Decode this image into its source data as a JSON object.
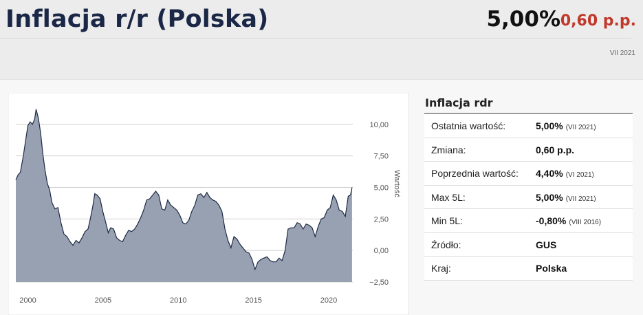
{
  "header": {
    "title": "Inflacja r/r (Polska)",
    "value": "5,00%",
    "change": "0,60 p.p.",
    "date": "VII 2021"
  },
  "table": {
    "title": "Inflacja rdr",
    "rows": [
      {
        "label": "Ostatnia wartość:",
        "value": "5,00%",
        "note": "(VII 2021)"
      },
      {
        "label": "Zmiana:",
        "value": "0,60 p.p.",
        "note": ""
      },
      {
        "label": "Poprzednia wartość:",
        "value": "4,40%",
        "note": "(VI 2021)"
      },
      {
        "label": "Max 5L:",
        "value": "5,00%",
        "note": "(VII 2021)"
      },
      {
        "label": "Min 5L:",
        "value": "-0,80%",
        "note": "(VIII 2016)"
      },
      {
        "label": "Źródło:",
        "value": "GUS",
        "note": ""
      },
      {
        "label": "Kraj:",
        "value": "Polska",
        "note": ""
      }
    ]
  },
  "chart_data": {
    "type": "area",
    "ylabel": "Wartość",
    "ylim": [
      -2.5,
      12.5
    ],
    "xlim": [
      1999.2,
      2021.6
    ],
    "yticks": [
      10,
      7.5,
      5,
      2.5,
      0,
      -2.5
    ],
    "ytick_labels": [
      "10,00",
      "7,50",
      "5,00",
      "2,50",
      "0,00",
      "−2,50"
    ],
    "xticks": [
      2000,
      2005,
      2010,
      2015,
      2020
    ],
    "xtick_labels": [
      "2000",
      "2005",
      "2010",
      "2015",
      "2020"
    ],
    "grid": true,
    "colors": {
      "fill": "#98a1b1",
      "line": "#1d2a44",
      "grid": "#cfcfcf"
    },
    "x": [
      1999.2,
      1999.35,
      1999.5,
      1999.7,
      1999.85,
      2000.0,
      2000.15,
      2000.3,
      2000.45,
      2000.55,
      2000.7,
      2000.85,
      2001.0,
      2001.15,
      2001.3,
      2001.45,
      2001.6,
      2001.8,
      2002.0,
      2002.2,
      2002.4,
      2002.6,
      2002.8,
      2003.0,
      2003.2,
      2003.4,
      2003.6,
      2003.8,
      2004.0,
      2004.15,
      2004.3,
      2004.45,
      2004.6,
      2004.8,
      2005.0,
      2005.2,
      2005.35,
      2005.5,
      2005.7,
      2005.9,
      2006.1,
      2006.3,
      2006.5,
      2006.7,
      2006.9,
      2007.1,
      2007.3,
      2007.5,
      2007.7,
      2007.9,
      2008.1,
      2008.3,
      2008.5,
      2008.7,
      2008.9,
      2009.1,
      2009.3,
      2009.5,
      2009.7,
      2009.9,
      2010.1,
      2010.3,
      2010.5,
      2010.7,
      2010.9,
      2011.1,
      2011.3,
      2011.5,
      2011.7,
      2011.9,
      2012.1,
      2012.3,
      2012.5,
      2012.7,
      2012.9,
      2013.1,
      2013.3,
      2013.5,
      2013.7,
      2013.9,
      2014.1,
      2014.3,
      2014.5,
      2014.7,
      2014.9,
      2015.1,
      2015.3,
      2015.5,
      2015.7,
      2015.9,
      2016.1,
      2016.3,
      2016.5,
      2016.7,
      2016.9,
      2017.1,
      2017.3,
      2017.5,
      2017.7,
      2017.9,
      2018.1,
      2018.3,
      2018.5,
      2018.7,
      2018.9,
      2019.1,
      2019.3,
      2019.5,
      2019.7,
      2019.9,
      2020.1,
      2020.3,
      2020.5,
      2020.7,
      2020.9,
      2021.1,
      2021.3,
      2021.45,
      2021.55
    ],
    "y": [
      5.6,
      6.0,
      6.2,
      7.5,
      8.7,
      9.9,
      10.2,
      10.0,
      10.4,
      11.2,
      10.5,
      9.3,
      7.6,
      6.3,
      5.3,
      4.8,
      3.8,
      3.3,
      3.4,
      2.2,
      1.3,
      1.1,
      0.7,
      0.4,
      0.8,
      0.6,
      1.0,
      1.5,
      1.7,
      2.5,
      3.4,
      4.5,
      4.4,
      4.1,
      3.0,
      2.1,
      1.4,
      1.8,
      1.7,
      1.0,
      0.8,
      0.7,
      1.2,
      1.6,
      1.5,
      1.7,
      2.1,
      2.6,
      3.2,
      4.0,
      4.1,
      4.4,
      4.7,
      4.4,
      3.3,
      3.2,
      4.0,
      3.6,
      3.4,
      3.2,
      2.8,
      2.2,
      2.1,
      2.4,
      3.1,
      3.6,
      4.4,
      4.5,
      4.2,
      4.6,
      4.2,
      4.0,
      3.9,
      3.6,
      3.1,
      1.7,
      0.8,
      0.2,
      1.1,
      0.9,
      0.5,
      0.2,
      -0.1,
      -0.2,
      -0.7,
      -1.5,
      -0.9,
      -0.7,
      -0.6,
      -0.5,
      -0.8,
      -0.9,
      -0.9,
      -0.6,
      -0.8,
      0.0,
      1.7,
      1.8,
      1.8,
      2.2,
      2.1,
      1.7,
      2.1,
      2.0,
      1.8,
      1.1,
      1.9,
      2.5,
      2.6,
      3.2,
      3.4,
      4.4,
      4.0,
      3.2,
      3.1,
      2.7,
      4.3,
      4.4,
      5.0
    ]
  }
}
